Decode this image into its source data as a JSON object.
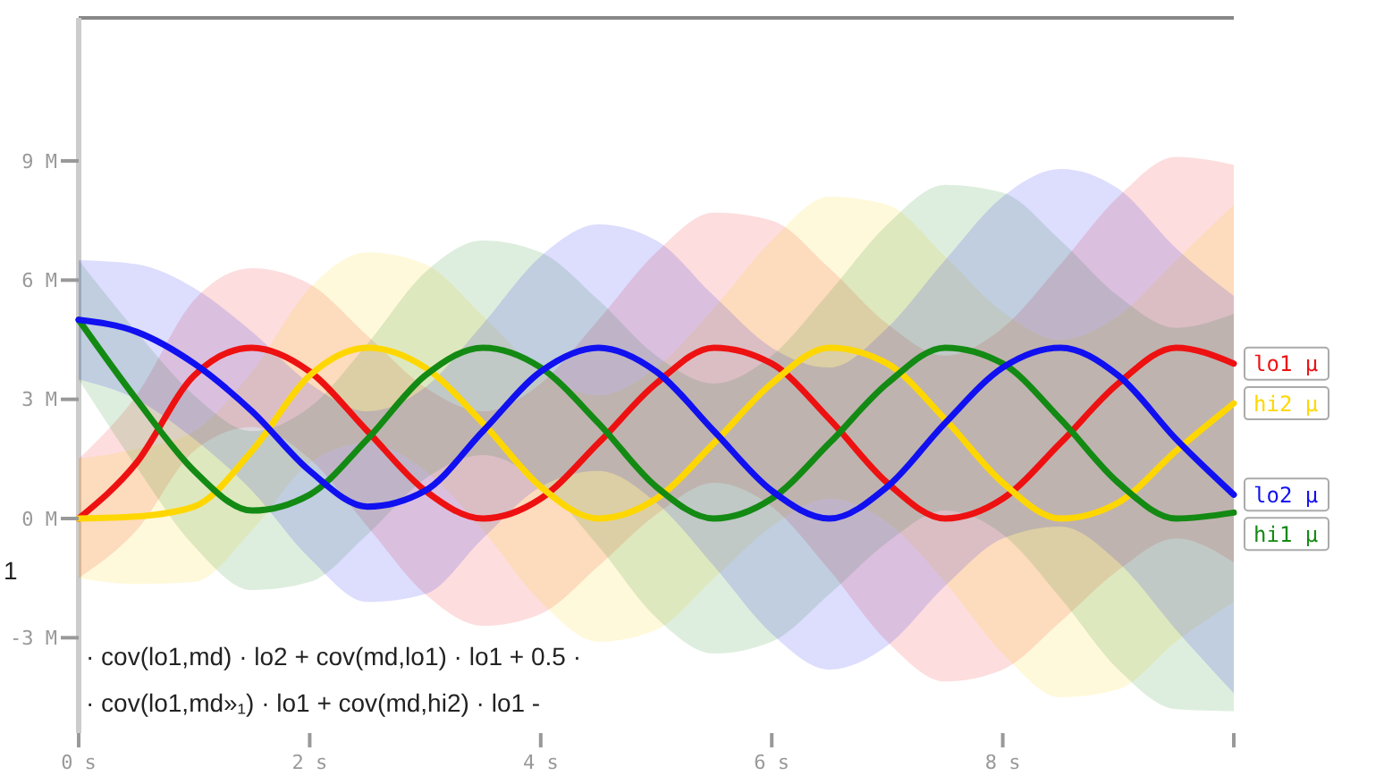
{
  "chart_data": {
    "type": "line",
    "x": [
      0,
      0.5,
      1,
      1.5,
      2,
      2.5,
      3,
      3.5,
      4,
      4.5,
      5,
      5.5,
      6,
      6.5,
      7,
      7.5,
      8,
      8.5,
      9,
      9.5,
      10
    ],
    "xlim": [
      0,
      10
    ],
    "xticks": [
      {
        "value": 0,
        "label": "0 s"
      },
      {
        "value": 2,
        "label": "2 s"
      },
      {
        "value": 4,
        "label": "4 s"
      },
      {
        "value": 6,
        "label": "6 s"
      },
      {
        "value": 8,
        "label": "8 s"
      },
      {
        "value": 10,
        "label": null
      }
    ],
    "ylim": [
      -5.4,
      12.6
    ],
    "yticks": [
      {
        "value": -3,
        "label": "-3 M"
      },
      {
        "value": 0,
        "label": "0 M"
      },
      {
        "value": 3,
        "label": "3 M"
      },
      {
        "value": 6,
        "label": "6 M"
      },
      {
        "value": 9,
        "label": "9 M"
      }
    ],
    "line_style": "solid",
    "series": [
      {
        "name": "lo1 μ",
        "color": "#ee1111",
        "values": [
          0,
          1.4,
          3.6,
          4.3,
          3.7,
          2.2,
          0.7,
          0,
          0.5,
          1.9,
          3.4,
          4.3,
          3.9,
          2.5,
          0.9,
          0,
          0.5,
          1.9,
          3.4,
          4.3,
          3.9
        ],
        "upper": [
          1.5,
          3.1,
          5.5,
          6.3,
          5.9,
          4.6,
          3.3,
          2.7,
          3.4,
          5.0,
          6.7,
          7.7,
          7.5,
          6.3,
          4.9,
          4.1,
          4.8,
          6.4,
          8.1,
          9.1,
          8.9
        ],
        "lower": [
          -1.5,
          -0.3,
          1.7,
          2.3,
          1.5,
          -0.2,
          -1.9,
          -2.7,
          -2.4,
          -1.2,
          0.1,
          0.9,
          0.3,
          -1.3,
          -3.1,
          -4.1,
          -3.8,
          -2.6,
          -1.3,
          -0.5,
          -1.1
        ]
      },
      {
        "name": "hi2 μ",
        "color": "#ffd700",
        "values": [
          0,
          0.05,
          0.3,
          1.7,
          3.6,
          4.3,
          3.8,
          2.4,
          0.8,
          0,
          0.5,
          1.9,
          3.4,
          4.3,
          3.9,
          2.5,
          0.9,
          0,
          0.4,
          1.7,
          2.9
        ],
        "upper": [
          1.5,
          1.75,
          2.2,
          3.7,
          5.8,
          6.7,
          6.4,
          5.1,
          3.7,
          3.1,
          3.8,
          5.3,
          7.0,
          8.1,
          7.9,
          6.6,
          5.2,
          4.5,
          5.1,
          6.5,
          7.9
        ],
        "lower": [
          -1.5,
          -1.65,
          -1.6,
          -0.3,
          1.4,
          1.9,
          1.2,
          -0.3,
          -2.1,
          -3.1,
          -2.8,
          -1.5,
          -0.2,
          0.5,
          -0.1,
          -1.6,
          -3.4,
          -4.5,
          -4.3,
          -3.1,
          -2.1
        ]
      },
      {
        "name": "hi1 μ",
        "color": "#138a13",
        "values": [
          5,
          3.0,
          1.2,
          0.2,
          0.6,
          2.0,
          3.6,
          4.3,
          3.8,
          2.4,
          0.8,
          0,
          0.5,
          1.9,
          3.4,
          4.3,
          3.9,
          2.5,
          0.9,
          0,
          0.15
        ],
        "upper": [
          6.5,
          4.7,
          3.1,
          2.2,
          2.8,
          4.4,
          6.2,
          7.0,
          6.7,
          5.5,
          4.1,
          3.4,
          4.1,
          5.7,
          7.4,
          8.4,
          8.2,
          7.0,
          5.6,
          4.8,
          5.15
        ],
        "lower": [
          3.5,
          1.3,
          -0.7,
          -1.8,
          -1.6,
          -0.4,
          1.0,
          1.6,
          0.9,
          -0.7,
          -2.5,
          -3.4,
          -3.1,
          -1.9,
          -0.6,
          0.2,
          -0.4,
          -2.0,
          -3.8,
          -4.8,
          -4.85
        ]
      },
      {
        "name": "lo2 μ",
        "color": "#1010f0",
        "values": [
          5,
          4.7,
          3.9,
          2.7,
          1.2,
          0.3,
          0.7,
          2.2,
          3.7,
          4.3,
          3.7,
          2.2,
          0.7,
          0,
          0.8,
          2.4,
          3.8,
          4.3,
          3.6,
          2.0,
          0.6
        ],
        "upper": [
          6.5,
          6.4,
          5.8,
          4.7,
          3.4,
          2.7,
          3.3,
          4.9,
          6.6,
          7.4,
          7.0,
          5.6,
          4.3,
          3.8,
          4.8,
          6.5,
          8.1,
          8.8,
          8.3,
          6.8,
          5.6
        ],
        "lower": [
          3.5,
          3.0,
          2.0,
          0.7,
          -1.0,
          -2.1,
          -1.9,
          -0.5,
          0.8,
          1.2,
          0.4,
          -1.2,
          -2.9,
          -3.8,
          -3.2,
          -1.7,
          -0.5,
          -0.2,
          -1.1,
          -2.8,
          -4.4
        ]
      }
    ],
    "annotations": [
      "1",
      "· cov(lo1,md) · lo2 + cov(md,lo1) · lo1 + 0.5 ·",
      "· cov(lo1,md»₁) · lo1 + cov(md,hi2) · lo1 -"
    ]
  }
}
